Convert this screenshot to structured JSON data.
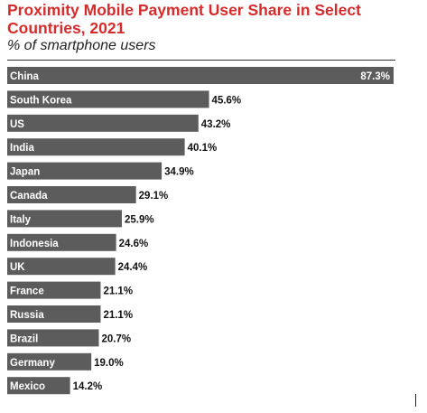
{
  "header": {
    "title": "Proximity Mobile Payment User Share in Select Countries, 2021",
    "subtitle": "% of smartphone users"
  },
  "colors": {
    "title": "#d62b2b",
    "bar": "#5c5c5c",
    "label_in_bar": "#ffffff",
    "value_outside": "#111111"
  },
  "chart_data": {
    "type": "bar",
    "orientation": "horizontal",
    "categories": [
      "China",
      "South Korea",
      "US",
      "India",
      "Japan",
      "Canada",
      "Italy",
      "Indonesia",
      "UK",
      "France",
      "Russia",
      "Brazil",
      "Germany",
      "Mexico"
    ],
    "values": [
      87.3,
      45.6,
      43.2,
      40.1,
      34.9,
      29.1,
      25.9,
      24.6,
      24.4,
      21.1,
      21.1,
      20.7,
      19.0,
      14.2
    ],
    "value_labels": [
      "87.3%",
      "45.6%",
      "43.2%",
      "40.1%",
      "34.9%",
      "29.1%",
      "25.9%",
      "24.6%",
      "24.4%",
      "21.1%",
      "21.1%",
      "20.7%",
      "19.0%",
      "14.2%"
    ],
    "title": "Proximity Mobile Payment User Share in Select Countries, 2021",
    "subtitle": "% of smartphone users",
    "xlim": [
      0,
      87.3
    ],
    "grid": false,
    "legend": "none"
  }
}
